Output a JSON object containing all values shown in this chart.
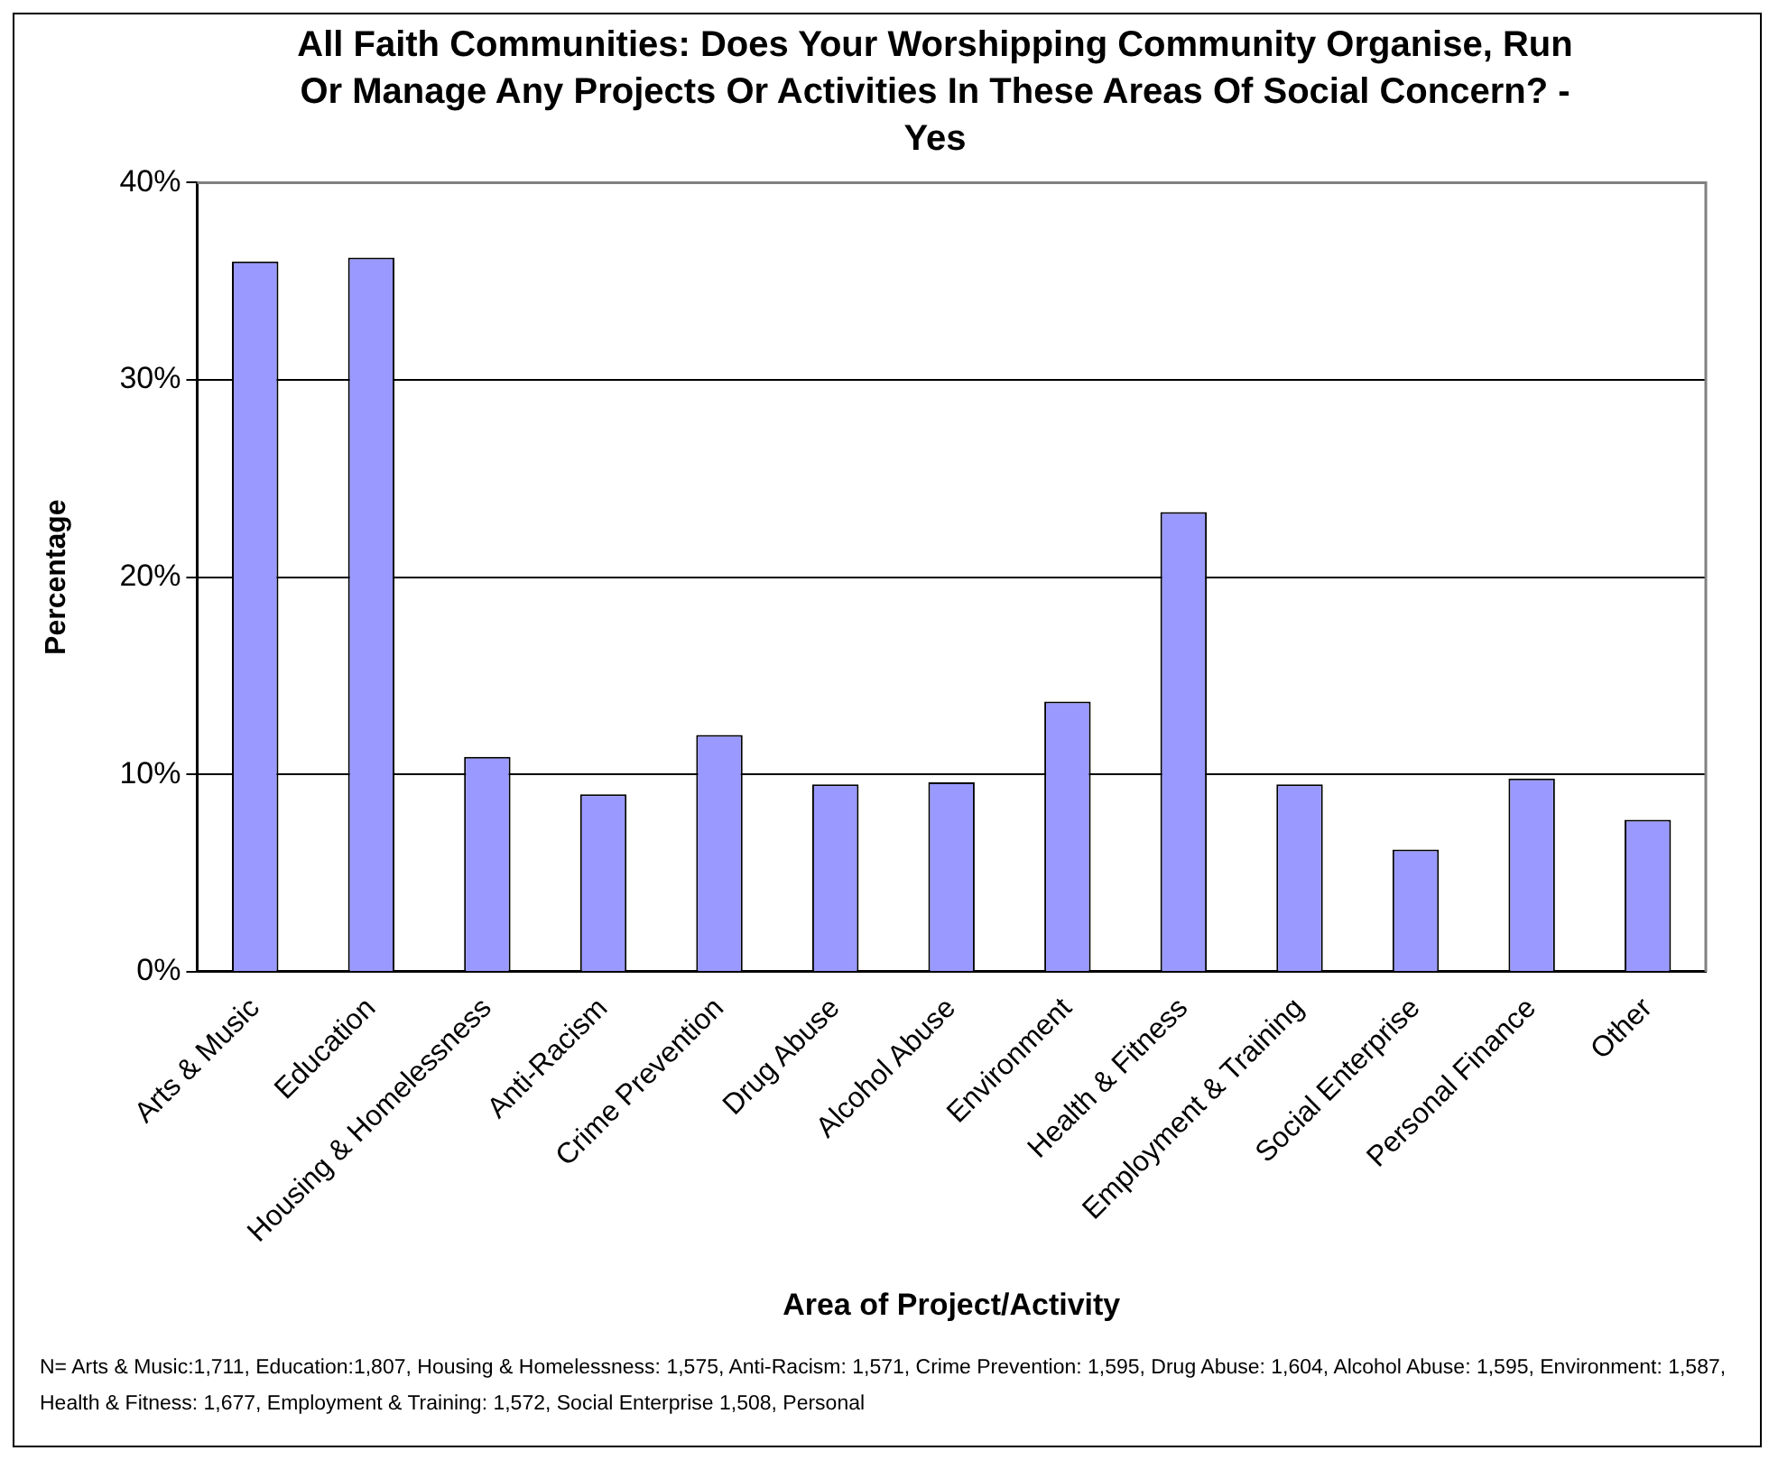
{
  "chart_data": {
    "type": "bar",
    "title": "All Faith Communities: Does Your Worshipping Community Organise, Run Or Manage Any Projects Or Activities In These Areas Of Social Concern? - Yes",
    "xlabel": "Area of Project/Activity",
    "ylabel": "Percentage",
    "categories": [
      "Arts & Music",
      "Education",
      "Housing & Homelessness",
      "Anti-Racism",
      "Crime Prevention",
      "Drug Abuse",
      "Alcohol Abuse",
      "Environment",
      "Health & Fitness",
      "Employment & Training",
      "Social Enterprise",
      "Personal Finance",
      "Other"
    ],
    "values": [
      36.0,
      36.2,
      10.9,
      9.0,
      12.0,
      9.5,
      9.6,
      13.7,
      23.3,
      9.5,
      6.2,
      9.8,
      7.7
    ],
    "color": "#9999ff",
    "ylim": [
      0,
      40
    ],
    "yticks": [
      {
        "value": 0,
        "label": "0%"
      },
      {
        "value": 10,
        "label": "10%"
      },
      {
        "value": 20,
        "label": "20%"
      },
      {
        "value": 30,
        "label": "30%"
      },
      {
        "value": 40,
        "label": "40%"
      }
    ],
    "grid": "y",
    "legend": false,
    "annotations": [
      "N= Arts & Music:1,711, Education:1,807, Housing & Homelessness: 1,575, Anti-Racism: 1,571, Crime Prevention: 1,595, Drug Abuse: 1,604, Alcohol Abuse: 1,595, Environment: 1,587, Health & Fitness: 1,677, Employment & Training: 1,572, Social Enterprise 1,508, Personal"
    ]
  }
}
